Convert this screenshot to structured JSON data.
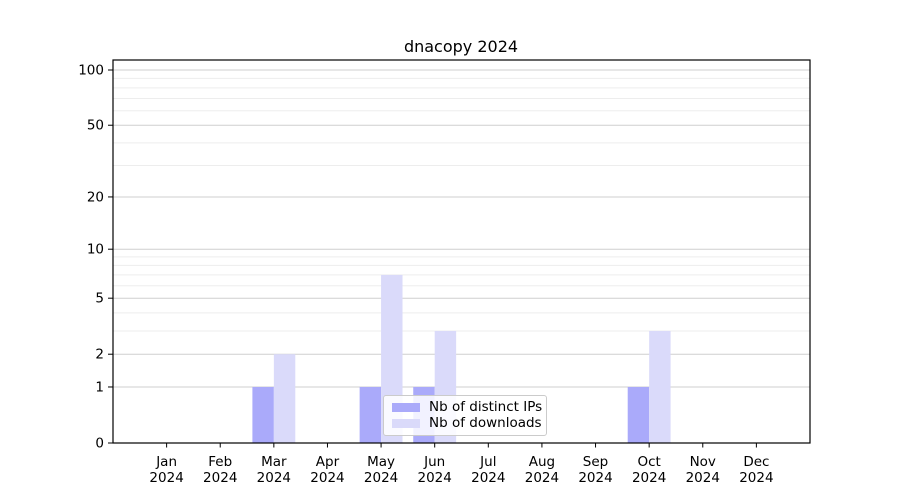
{
  "chart_data": {
    "type": "bar",
    "title": "dnacopy 2024",
    "categories": [
      "Jan",
      "Feb",
      "Mar",
      "Apr",
      "May",
      "Jun",
      "Jul",
      "Aug",
      "Sep",
      "Oct",
      "Nov",
      "Dec"
    ],
    "year_label": "2024",
    "series": [
      {
        "name": "Nb of distinct IPs",
        "color": "#aaaafa",
        "values": [
          0,
          0,
          1,
          0,
          1,
          1,
          0,
          0,
          0,
          1,
          0,
          0
        ]
      },
      {
        "name": "Nb of downloads",
        "color": "#dadafa",
        "values": [
          0,
          0,
          2,
          0,
          7,
          3,
          0,
          0,
          0,
          3,
          0,
          0
        ]
      }
    ],
    "yscale": "log1p",
    "yticks": [
      0,
      1,
      2,
      5,
      10,
      20,
      50,
      100
    ],
    "minor_yticks": [
      3,
      4,
      6,
      7,
      8,
      9,
      30,
      40,
      60,
      70,
      80,
      90
    ],
    "ylim": [
      0,
      113
    ],
    "xlabel": "",
    "ylabel": "",
    "grid": "on",
    "legend_position": "lower-center"
  },
  "colors": {
    "background": "#ffffff",
    "axis": "#000000",
    "major_grid": "#cfcfcf",
    "minor_grid": "#ededed",
    "bar_distinct_ips": "#aaaafa",
    "bar_downloads": "#dadafa",
    "legend_border": "#cbcbcb"
  }
}
